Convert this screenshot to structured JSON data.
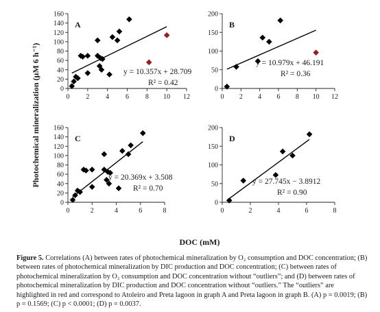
{
  "figure": {
    "ylabel": "Photochemical mineralization (µM 6 h⁻¹)",
    "xlabel": "DOC (mM)"
  },
  "chart_data": [
    {
      "type": "scatter",
      "panel": "A",
      "xlim": [
        0,
        12
      ],
      "ylim": [
        0,
        160
      ],
      "xticks": [
        0,
        2,
        4,
        6,
        8,
        10,
        12
      ],
      "yticks": [
        0,
        20,
        40,
        60,
        80,
        100,
        120,
        140,
        160
      ],
      "series": [
        {
          "role": "points",
          "color": "#000000",
          "x": [
            0.4,
            0.6,
            0.8,
            1.0,
            1.3,
            1.5,
            2.0,
            2.0,
            3.0,
            3.0,
            3.2,
            3.3,
            3.4,
            3.5,
            4.2,
            4.5,
            5.0,
            5.2,
            6.2
          ],
          "y": [
            5,
            15,
            25,
            22,
            70,
            68,
            70,
            33,
            103,
            70,
            48,
            65,
            40,
            63,
            30,
            110,
            103,
            122,
            148
          ]
        },
        {
          "role": "outliers",
          "color": "#9b1c1c",
          "x": [
            8.2,
            10.0
          ],
          "y": [
            56,
            114
          ]
        }
      ],
      "fit": {
        "slope": 10.357,
        "intercept": 28.709
      },
      "equation": "y = 10.357x + 28.709",
      "r2": "R² = 0.42"
    },
    {
      "type": "scatter",
      "panel": "B",
      "xlim": [
        0,
        12
      ],
      "ylim": [
        0,
        200
      ],
      "xticks": [
        0,
        2,
        4,
        6,
        8,
        10,
        12
      ],
      "yticks": [
        0,
        50,
        100,
        150,
        200
      ],
      "series": [
        {
          "role": "points",
          "color": "#000000",
          "x": [
            0.5,
            1.5,
            3.8,
            4.3,
            5.0,
            6.2
          ],
          "y": [
            5,
            58,
            73,
            136,
            125,
            182
          ]
        },
        {
          "role": "outliers",
          "color": "#9b1c1c",
          "x": [
            10.0
          ],
          "y": [
            96
          ]
        }
      ],
      "fit": {
        "slope": 10.979,
        "intercept": 46.191
      },
      "equation": "y = 10.979x + 46.191",
      "r2": "R² = 0.36"
    },
    {
      "type": "scatter",
      "panel": "C",
      "xlim": [
        0,
        8
      ],
      "ylim": [
        0,
        160
      ],
      "xticks": [
        0,
        2,
        4,
        6,
        8
      ],
      "yticks": [
        0,
        20,
        40,
        60,
        80,
        100,
        120,
        140,
        160
      ],
      "series": [
        {
          "role": "points",
          "color": "#000000",
          "x": [
            0.4,
            0.6,
            0.8,
            1.0,
            1.3,
            1.5,
            2.0,
            2.0,
            3.0,
            3.0,
            3.2,
            3.3,
            3.4,
            3.5,
            4.2,
            4.5,
            5.0,
            5.2,
            6.2
          ],
          "y": [
            5,
            15,
            25,
            22,
            70,
            68,
            70,
            33,
            103,
            70,
            48,
            65,
            40,
            63,
            30,
            110,
            103,
            122,
            148
          ]
        }
      ],
      "fit": {
        "slope": 20.369,
        "intercept": 3.508
      },
      "equation": "y = 20.369x + 3.508",
      "r2": "R² = 0.70"
    },
    {
      "type": "scatter",
      "panel": "D",
      "xlim": [
        0,
        8
      ],
      "ylim": [
        0,
        200
      ],
      "xticks": [
        0,
        2,
        4,
        6,
        8
      ],
      "yticks": [
        0,
        50,
        100,
        150,
        200
      ],
      "series": [
        {
          "role": "points",
          "color": "#000000",
          "x": [
            0.5,
            1.5,
            3.8,
            4.3,
            5.0,
            6.2
          ],
          "y": [
            5,
            58,
            73,
            136,
            125,
            182
          ]
        }
      ],
      "fit": {
        "slope": 27.745,
        "intercept": -3.8912
      },
      "equation": "y = 27.745x − 3.8912",
      "r2": "R² = 0.90"
    }
  ],
  "caption": {
    "label": "Figure 5.",
    "text": " Correlations (A) between rates of photochemical mineralization by O₂ consumption and DOC concentration; (B) between rates of photochemical mineralization by DIC production and DOC concentration; (C) between rates of photochemical mineralization by O₂ consumption and DOC concentration without “outliers”; and (D) between rates of photochemical mineralization by DIC production and DOC concentration without “outliers.” The “outliers” are highlighted in red and correspond to Atoleiro and Preta lagoon in graph A and Preta lagoon in graph B. (A) p = 0.0019; (B) p = 0.1569; (C) p < 0.0001; (D) p = 0.0037."
  }
}
